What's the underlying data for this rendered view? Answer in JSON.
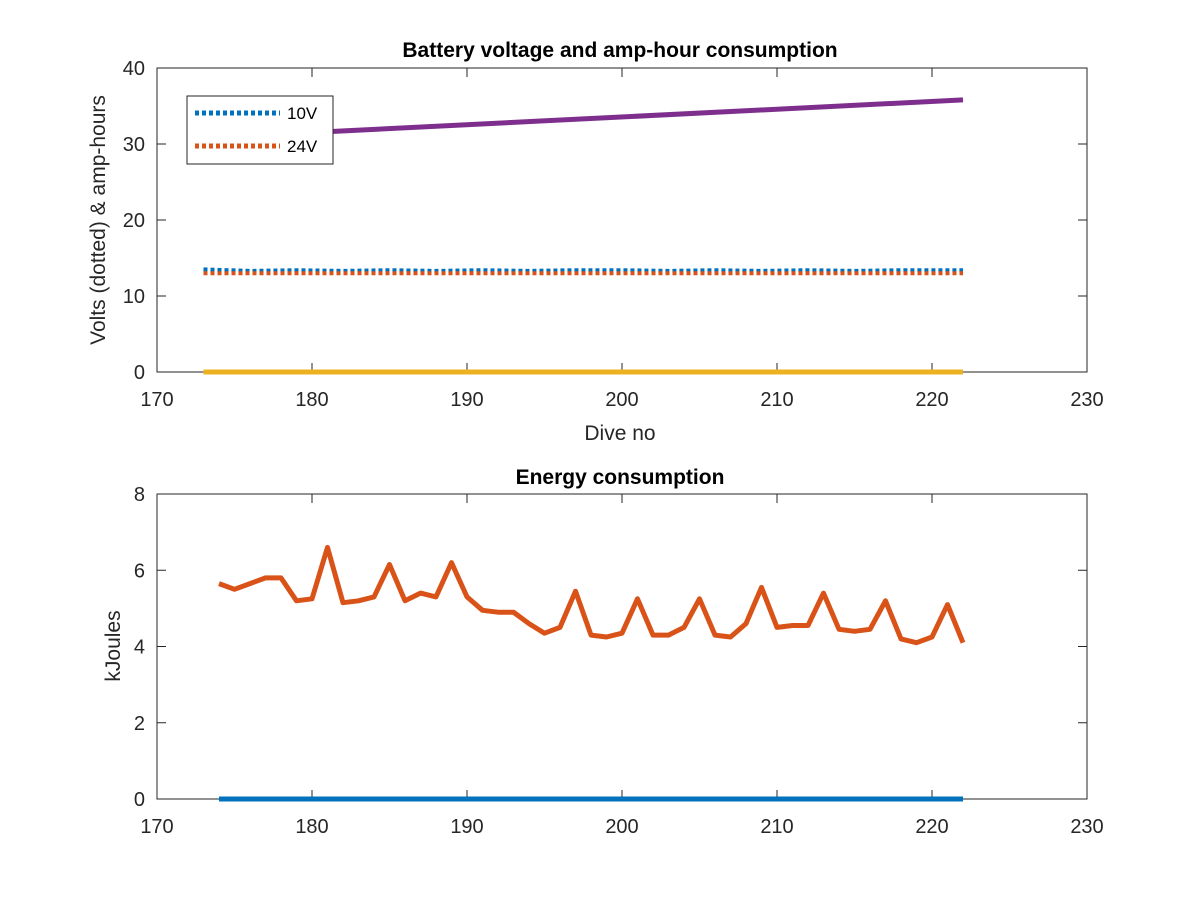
{
  "chart_data": [
    {
      "type": "line",
      "title": "Battery voltage and amp-hour consumption",
      "xlabel": "Dive no",
      "ylabel": "Volts (dotted) & amp-hours",
      "xlim": [
        170,
        230
      ],
      "ylim": [
        0,
        40
      ],
      "xticks": [
        "170",
        "180",
        "190",
        "200",
        "210",
        "220",
        "230"
      ],
      "yticks": [
        "0",
        "10",
        "20",
        "30",
        "40"
      ],
      "legend_position": "top-left",
      "series": [
        {
          "name": "10V",
          "style": "dotted",
          "color": "#0072BD",
          "x": [
            173,
            176,
            179,
            182,
            185,
            188,
            191,
            194,
            197,
            200,
            203,
            206,
            209,
            212,
            215,
            218,
            222
          ],
          "y": [
            13.5,
            13.3,
            13.4,
            13.3,
            13.4,
            13.3,
            13.4,
            13.3,
            13.4,
            13.4,
            13.3,
            13.4,
            13.3,
            13.4,
            13.3,
            13.4,
            13.4
          ]
        },
        {
          "name": "24V",
          "style": "dotted",
          "color": "#D95319",
          "x": [
            173,
            222
          ],
          "y": [
            13.0,
            13.0
          ]
        },
        {
          "style": "solid",
          "color": "#7E2F8E",
          "x": [
            173,
            222
          ],
          "y": [
            30.8,
            35.8
          ]
        },
        {
          "style": "solid",
          "color": "#EDB120",
          "x": [
            173,
            222
          ],
          "y": [
            0,
            0
          ]
        }
      ]
    },
    {
      "type": "line",
      "title": "Energy consumption",
      "xlabel": "",
      "ylabel": "kJoules",
      "xlim": [
        170,
        230
      ],
      "ylim": [
        0,
        8
      ],
      "xticks": [
        "170",
        "180",
        "190",
        "200",
        "210",
        "220",
        "230"
      ],
      "yticks": [
        "0",
        "2",
        "4",
        "6",
        "8"
      ],
      "series": [
        {
          "style": "solid",
          "color": "#D95319",
          "x": [
            174,
            175,
            176,
            177,
            178,
            179,
            180,
            181,
            182,
            183,
            184,
            185,
            186,
            187,
            188,
            189,
            190,
            191,
            192,
            193,
            194,
            195,
            196,
            197,
            198,
            199,
            200,
            201,
            202,
            203,
            204,
            205,
            206,
            207,
            208,
            209,
            210,
            211,
            212,
            213,
            214,
            215,
            216,
            217,
            218,
            219,
            220,
            221,
            222
          ],
          "y": [
            5.65,
            5.5,
            5.65,
            5.8,
            5.8,
            5.2,
            5.25,
            6.6,
            5.15,
            5.2,
            5.3,
            6.15,
            5.2,
            5.4,
            5.3,
            6.2,
            5.3,
            4.95,
            4.9,
            4.9,
            4.6,
            4.35,
            4.5,
            5.45,
            4.3,
            4.25,
            4.35,
            5.25,
            4.3,
            4.3,
            4.5,
            5.25,
            4.3,
            4.25,
            4.6,
            5.55,
            4.5,
            4.55,
            4.55,
            5.4,
            4.45,
            4.4,
            4.45,
            5.2,
            4.2,
            4.1,
            4.25,
            5.1,
            4.1
          ]
        },
        {
          "style": "solid",
          "color": "#0072BD",
          "x": [
            174,
            222
          ],
          "y": [
            0,
            0
          ]
        }
      ]
    }
  ]
}
